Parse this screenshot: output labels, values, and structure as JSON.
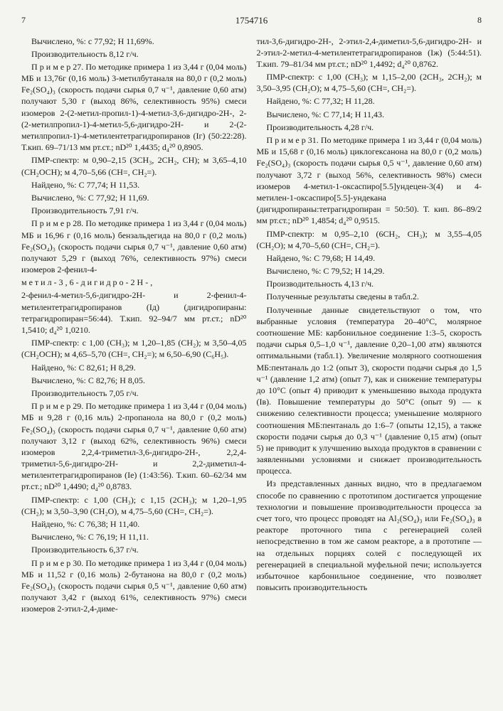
{
  "header": {
    "page_left": "7",
    "doc_number": "1754716",
    "page_right": "8"
  },
  "line_markers": [
    "5",
    "10",
    "15",
    "20",
    "25",
    "30",
    "35",
    "40",
    "45",
    "50",
    "55"
  ],
  "col1": {
    "p1": "Вычислено, %: с 77,92; Н 11,69%.",
    "p2": "Производительность 8,12 г/ч.",
    "p3": "П р и м е р 27. По методике примера 1 из 3,44 г (0,04 моль) МБ и 13,76г (0,16 моль) 3-метилбутаналя на 80,0 г (0,2 моль) Fe₂(SO₄)₃ (скорость подачи сырья 0,7 ч⁻¹, давление 0,60 атм) получают 5,30 г (выход 86%, селективность 95%) смеси изомеров 2-(2-метил-пропил-1)-4-метил-3,6-дигидро-2Н-, 2-(2-метилпропил-1)-4-метил-5,6-дигидро-2Н- и 2-(2-метилпропил-1)-4-метилентетрагидропиранов (Iг) (50:22:28). Т.кип. 69–71/13 мм рт.ст.; nD²⁰ 1,4435; d₄²⁰ 0,8905.",
    "p4": "ПМР-спектр: м 0,90–2,15 (3СН₃, 2СН₂, СН); м 3,65–4,10 (СН₂ОСН); м 4,70–5,66 (СН=, СН₂=).",
    "p5": "Найдено, %: С 77,74; Н 11,53.",
    "p6": "Вычислено, %: С 77,92; Н 11,69.",
    "p7": "Производительность 7,91 г/ч.",
    "p8a": "П р и м е р 28. По методике примера 1 из 3,44 г (0,04 моль) МБ и 16,96 г (0,16 моль) бензальдегида на 80,0 г (0,2 моль) Fe₂(SO₄)₃ (скорость подачи сырья 0,7 ч⁻¹, давление 0,60 атм) получают 5,29 г (выход 76%, селективность 97%) смеси изомеров 2-фенил-4-",
    "p8b": "м е т и л - 3 , 6 - д и г и д р о - 2 Н - ,",
    "p8c": "2-фенил-4-метил-5,6-дигидро-2Н- и 2-фенил-4-метилентетрагидропиранов (Iд) (дигидропираны: тетрагидропиран=56:44). Т.кип. 92–94/7 мм рт.ст.; nD²⁰ 1,5410; d₄²⁰ 1,0210.",
    "p9": "ПМР-спектр: с 1,00 (СН₃); м 1,20–1,85 (СН₂); м 3,50–4,05 (СН₂ОСН); м 4,65–5,70 (СН=, СН₂=); м 6,50–6,90 (С₆Н₅).",
    "p10": "Найдено, %: С 82,61; Н 8,29.",
    "p11": "Вычислено, %: С 82,76; Н 8,05.",
    "p12": "Производительность 7,05 г/ч.",
    "p13": "П р и м е р 29. По методике примера 1 из 3,44 г (0,04 моль) МБ и 9,28 г (0,16 мль) 2-пропанола на 80,0 г (0,2 моль) Fe₂(SO₄)₃ (скорость подачи сырья 0,7 ч⁻¹, давление 0,60 атм) получают 3,12 г (выход 62%, селективность 96%) смеси изомеров 2,2,4-триметил-3,6-дигидро-2Н-, 2,2,4-триметил-5,6-дигидро-2Н- и 2,2-диметил-4-метилентетрагидропиранов (Iе) (1:43:56). Т.кип. 60–62/34 мм рт.ст.; nD²⁰ 1,4490; d₄²⁰ 0,8783.",
    "p14": "ПМР-спектр: с 1,00 (СН₃); с 1,15 (2СН₃); м 1,20–1,95 (СН₂); м 3,50–3,90 (СН₂О), м 4,75–5,60 (СН=, СН₂=).",
    "p15": "Найдено, %: С 76,38; Н 11,40.",
    "p16": "Вычислено, %: С 76,19; Н 11,11.",
    "p17": "Производительность 6,37 г/ч.",
    "p18": "П р и м е р 30. По методике примера 1 из 3,44 г (0,04 моль) МБ и 11,52 г (0,16 моль) 2-бутанона на 80,0 г (0,2 моль) Fe₂(SO₄)₃ (скорость подачи сырья 0,5 ч⁻¹, давление 0,60 атм) получают 3,42 г (выход 61%, селективность 97%) смеси изомеров 2-этил-2,4-диме-"
  },
  "col2": {
    "p1": "тил-3,6-дигидро-2Н-, 2-этил-2,4-диметил-5,6-дигидро-2Н- и 2-этил-2-метил-4-метилентетрагидропиранов (Iж) (5:44:51). Т.кип. 79–81/34 мм рт.ст.; nD²⁰ 1,4492; d₄²⁰ 0,8762.",
    "p2": "ПМР-спектр: с 1,00 (СН₃); м 1,15–2,00 (2СН₃, 2СН₂); м 3,50–3,95 (СН₂О); м 4,75–5,60 (СН=, СН₂=).",
    "p3": "Найдено, %: С 77,32; Н 11,28.",
    "p4": "Вычислено, %: С 77,14; Н 11,43.",
    "p5": "Производительность 4,28 г/ч.",
    "p6": "П р и м е р 31. По методике примера 1 из 3,44 г (0,04 моль) МБ и 15,68 г (0,16 моль) циклогексанона на 80,0 г (0,2 моль) Fe₂(SO₄)₃ (скорость подачи сырья 0,5 ч⁻¹, давление 0,60 атм) получают 3,72 г (выход 56%, селективность 98%) смеси изомеров 4-метил-1-оксаспиро[5.5]ундецен-3(4) и 4-метилен-1-оксаспиро[5.5]-ундекана (дигидропираны:тетрагидропиран = 50:50). Т. кип. 86–89/2 мм рт.ст.; nD²⁰ 1,4854; d₄²⁰ 0,9515.",
    "p7": "ПМР-спектр: м 0,95–2,10 (6СН₂, СН₃); м 3,55–4,05 (СН₂О); м 4,70–5,60 (СН=, СН₂=).",
    "p8": "Найдено, %: С 79,68; Н 14,49.",
    "p9": "Вычислено, %: С 79,52; Н 14,29.",
    "p10": "Производительность 4,13 г/ч.",
    "p11": "Полученные результаты сведены в табл.2.",
    "p12": "Полученные данные свидетельствуют о том, что выбранные условия (температура 20–40°С, молярное соотношение МБ: карбонильное соединение 1:3–5, скорость подачи сырья 0,5–1,0 ч⁻¹, давление 0,20–1,00 атм) являются оптимальными (табл.1). Увеличение молярного соотношения МБ:пентаналь до 1:2 (опыт 3), скорости подачи сырья до 1,5 ч⁻¹ (давление 1,2 атм) (опыт 7), как и снижение температуры до 10°С (опыт 4) приводит к уменьшению выхода продукта (Iв). Повышение температуры до 50°С (опыт 9) — к снижению селективности процесса; уменьшение молярного соотношения МБ:пентаналь до 1:6–7 (опыты 12,15), а также скорости подачи сырья до 0,3 ч⁻¹ (давление 0,15 атм) (опыт 5) не приводит к улучшению выхода продуктов в сравнении с заявленными условиями и снижает производительность процесса.",
    "p13": "Из представленных данных видно, что в предлагаемом способе по сравнению с прототипом достигается упрощение технологии и повышение производительности процесса за счет того, что процесс проводят на Al₂(SO₄)₃ или Fe₂(SO₄)₃ в реакторе проточного типа с регенерацией солей непосредственно в том же самом реакторе, а в прототипе — на отдельных порциях солей с последующей их регенерацией в специальной муфельной печи; используется избыточное карбонильное соединение, что позволяет повысить производительность"
  }
}
